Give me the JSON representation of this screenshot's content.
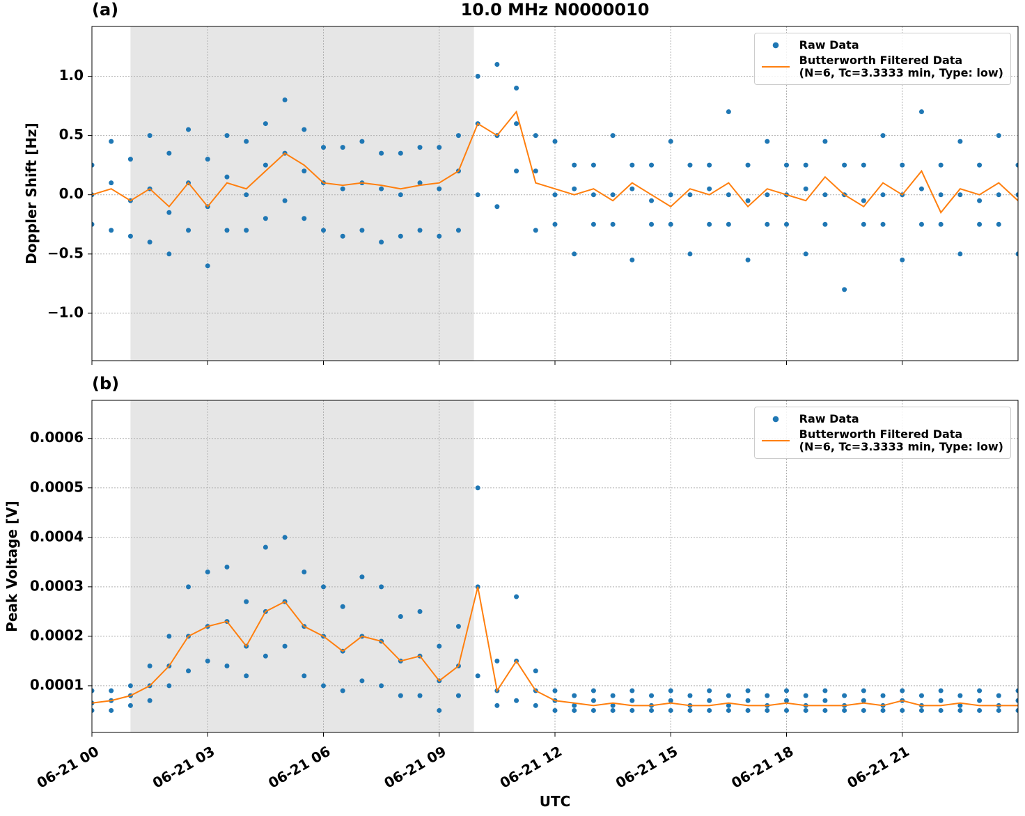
{
  "chart_data": [
    {
      "type": "line",
      "title": "10.0 MHz N0000010",
      "panel_label": "(a)",
      "ylabel": "Doppler Shift [Hz]",
      "xlim": [
        0,
        24
      ],
      "ylim": [
        -1.4,
        1.42
      ],
      "xticks": [
        {
          "value": 0,
          "label": "06-21 00"
        },
        {
          "value": 3,
          "label": "06-21 03"
        },
        {
          "value": 6,
          "label": "06-21 06"
        },
        {
          "value": 9,
          "label": "06-21 09"
        },
        {
          "value": 12,
          "label": "06-21 12"
        },
        {
          "value": 15,
          "label": "06-21 15"
        },
        {
          "value": 18,
          "label": "06-21 18"
        },
        {
          "value": 21,
          "label": "06-21 21"
        }
      ],
      "yticks": [
        {
          "value": -1,
          "label": "−1.0"
        },
        {
          "value": -0.5,
          "label": "−0.5"
        },
        {
          "value": 0,
          "label": "0.0"
        },
        0.5,
        {
          "value": 1,
          "label": "1.0"
        }
      ],
      "grid": true,
      "shade": [
        1.0,
        9.9
      ],
      "legend": "upper right",
      "x": [
        0,
        0.5,
        1,
        1.5,
        2,
        2.5,
        3,
        3.5,
        4,
        4.5,
        5,
        5.5,
        6,
        6.5,
        7,
        7.5,
        8,
        8.5,
        9,
        9.5,
        10,
        10.5,
        11,
        11.5,
        12,
        12.5,
        13,
        13.5,
        14,
        14.5,
        15,
        15.5,
        16,
        16.5,
        17,
        17.5,
        18,
        18.5,
        19,
        19.5,
        20,
        20.5,
        21,
        21.5,
        22,
        22.5,
        23,
        23.5,
        24
      ],
      "series": [
        {
          "name": "Raw Data",
          "kind": "scatter",
          "color": "#1f77b4",
          "values": [
            [
              0.25,
              0.0,
              -0.25
            ],
            [
              0.45,
              0.1,
              -0.3
            ],
            [
              0.3,
              -0.05,
              -0.35
            ],
            [
              0.5,
              0.05,
              -0.4
            ],
            [
              0.35,
              -0.15,
              -0.5
            ],
            [
              0.55,
              0.1,
              -0.3
            ],
            [
              0.3,
              -0.1,
              -0.6
            ],
            [
              0.5,
              0.15,
              -0.3
            ],
            [
              0.45,
              0.0,
              -0.3
            ],
            [
              0.6,
              0.25,
              -0.2
            ],
            [
              0.8,
              0.35,
              -0.05
            ],
            [
              0.55,
              0.2,
              -0.2
            ],
            [
              0.4,
              0.1,
              -0.3
            ],
            [
              0.4,
              0.05,
              -0.35
            ],
            [
              0.45,
              0.1,
              -0.3
            ],
            [
              0.35,
              0.05,
              -0.4
            ],
            [
              0.35,
              0.0,
              -0.35
            ],
            [
              0.4,
              0.1,
              -0.3
            ],
            [
              0.4,
              0.05,
              -0.35
            ],
            [
              0.5,
              0.2,
              -0.3
            ],
            [
              1.0,
              0.6,
              0.0
            ],
            [
              1.1,
              0.5,
              -0.1
            ],
            [
              0.9,
              0.6,
              0.2
            ],
            [
              0.5,
              0.2,
              -0.3
            ],
            [
              0.45,
              0.0,
              -0.25
            ],
            [
              0.25,
              0.05,
              -0.5
            ],
            [
              0.25,
              0.0,
              -0.25
            ],
            [
              0.5,
              0.0,
              -0.25
            ],
            [
              0.25,
              0.05,
              -0.55
            ],
            [
              0.25,
              -0.05,
              -0.25
            ],
            [
              0.45,
              0.0,
              -0.25
            ],
            [
              0.25,
              0.0,
              -0.5
            ],
            [
              0.25,
              0.05,
              -0.25
            ],
            [
              0.7,
              0.0,
              -0.25
            ],
            [
              0.25,
              -0.05,
              -0.55
            ],
            [
              0.45,
              0.0,
              -0.25
            ],
            [
              0.25,
              0.0,
              -0.25
            ],
            [
              0.25,
              0.05,
              -0.5
            ],
            [
              0.45,
              0.0,
              -0.25
            ],
            [
              0.25,
              0.0,
              -0.8
            ],
            [
              0.25,
              -0.05,
              -0.25
            ],
            [
              0.5,
              0.0,
              -0.25
            ],
            [
              0.25,
              0.0,
              -0.55
            ],
            [
              0.7,
              0.05,
              -0.25
            ],
            [
              0.25,
              0.0,
              -0.25
            ],
            [
              0.45,
              0.0,
              -0.5
            ],
            [
              0.25,
              -0.05,
              -0.25
            ],
            [
              0.5,
              0.0,
              -0.25
            ],
            [
              0.25,
              0.0,
              -0.5
            ]
          ]
        },
        {
          "name": "Butterworth Filtered Data\n(N=6, Tc=3.3333 min, Type: low)",
          "kind": "line",
          "color": "#ff7f0e",
          "values": [
            0,
            0.05,
            -0.05,
            0.05,
            -0.1,
            0.1,
            -0.1,
            0.1,
            0.05,
            0.2,
            0.35,
            0.25,
            0.1,
            0.08,
            0.1,
            0.08,
            0.05,
            0.08,
            0.1,
            0.2,
            0.6,
            0.5,
            0.7,
            0.1,
            0.05,
            0.0,
            0.05,
            -0.05,
            0.1,
            0.0,
            -0.1,
            0.05,
            0.0,
            0.1,
            -0.1,
            0.05,
            0.0,
            -0.05,
            0.15,
            0.0,
            -0.1,
            0.1,
            0.0,
            0.2,
            -0.15,
            0.05,
            0.0,
            0.1,
            -0.05
          ]
        }
      ]
    },
    {
      "type": "line",
      "panel_label": "(b)",
      "ylabel": "Peak Voltage [V]",
      "xlabel": "UTC",
      "xlim": [
        0,
        24
      ],
      "ylim": [
        5.6e-06,
        0.000677
      ],
      "xticks": [
        {
          "value": 0,
          "label": "06-21 00"
        },
        {
          "value": 3,
          "label": "06-21 03"
        },
        {
          "value": 6,
          "label": "06-21 06"
        },
        {
          "value": 9,
          "label": "06-21 09"
        },
        {
          "value": 12,
          "label": "06-21 12"
        },
        {
          "value": 15,
          "label": "06-21 15"
        },
        {
          "value": 18,
          "label": "06-21 18"
        },
        {
          "value": 21,
          "label": "06-21 21"
        }
      ],
      "yticks": [
        0.0001,
        0.0002,
        0.0003,
        0.0004,
        0.0005,
        0.0006
      ],
      "grid": true,
      "shade": [
        1.0,
        9.9
      ],
      "legend": "upper right",
      "x": [
        0,
        0.5,
        1,
        1.5,
        2,
        2.5,
        3,
        3.5,
        4,
        4.5,
        5,
        5.5,
        6,
        6.5,
        7,
        7.5,
        8,
        8.5,
        9,
        9.5,
        10,
        10.5,
        11,
        11.5,
        12,
        12.5,
        13,
        13.5,
        14,
        14.5,
        15,
        15.5,
        16,
        16.5,
        17,
        17.5,
        18,
        18.5,
        19,
        19.5,
        20,
        20.5,
        21,
        21.5,
        22,
        22.5,
        23,
        23.5,
        24
      ],
      "series": [
        {
          "name": "Raw Data",
          "kind": "scatter",
          "color": "#1f77b4",
          "values": [
            [
              9e-05,
              6.5e-05,
              5e-05
            ],
            [
              9e-05,
              7e-05,
              5e-05
            ],
            [
              0.0001,
              8e-05,
              6e-05
            ],
            [
              0.00014,
              0.0001,
              7e-05
            ],
            [
              0.0002,
              0.00014,
              0.0001
            ],
            [
              0.0003,
              0.0002,
              0.00013
            ],
            [
              0.00033,
              0.00022,
              0.00015
            ],
            [
              0.00034,
              0.00023,
              0.00014
            ],
            [
              0.00027,
              0.00018,
              0.00012
            ],
            [
              0.00038,
              0.00025,
              0.00016
            ],
            [
              0.0004,
              0.00027,
              0.00018
            ],
            [
              0.00033,
              0.00022,
              0.00012
            ],
            [
              0.0003,
              0.0002,
              0.0001
            ],
            [
              0.00026,
              0.00017,
              9e-05
            ],
            [
              0.00032,
              0.0002,
              0.00011
            ],
            [
              0.0003,
              0.00019,
              0.0001
            ],
            [
              0.00024,
              0.00015,
              8e-05
            ],
            [
              0.00025,
              0.00016,
              8e-05
            ],
            [
              0.00018,
              0.00011,
              5e-05
            ],
            [
              0.00022,
              0.00014,
              8e-05
            ],
            [
              0.0005,
              0.0003,
              0.00012
            ],
            [
              0.00015,
              9e-05,
              6e-05
            ],
            [
              0.00028,
              0.00015,
              7e-05
            ],
            [
              0.00013,
              9e-05,
              6e-05
            ],
            [
              9e-05,
              7e-05,
              5e-05
            ],
            [
              8e-05,
              6e-05,
              5e-05
            ],
            [
              9e-05,
              7e-05,
              5e-05
            ],
            [
              8e-05,
              6e-05,
              5e-05
            ],
            [
              9e-05,
              7e-05,
              5e-05
            ],
            [
              8e-05,
              6e-05,
              5e-05
            ],
            [
              9e-05,
              7e-05,
              5e-05
            ],
            [
              8e-05,
              6e-05,
              5e-05
            ],
            [
              9e-05,
              7e-05,
              5e-05
            ],
            [
              8e-05,
              6e-05,
              5e-05
            ],
            [
              9e-05,
              7e-05,
              5e-05
            ],
            [
              8e-05,
              6e-05,
              5e-05
            ],
            [
              9e-05,
              7e-05,
              5e-05
            ],
            [
              8e-05,
              6e-05,
              5e-05
            ],
            [
              9e-05,
              7e-05,
              5e-05
            ],
            [
              8e-05,
              6e-05,
              5e-05
            ],
            [
              9e-05,
              7e-05,
              5e-05
            ],
            [
              8e-05,
              6e-05,
              5e-05
            ],
            [
              9e-05,
              7e-05,
              5e-05
            ],
            [
              8e-05,
              6e-05,
              5e-05
            ],
            [
              9e-05,
              7e-05,
              5e-05
            ],
            [
              8e-05,
              6e-05,
              5e-05
            ],
            [
              9e-05,
              7e-05,
              5e-05
            ],
            [
              8e-05,
              6e-05,
              5e-05
            ],
            [
              9e-05,
              7e-05,
              5e-05
            ]
          ]
        },
        {
          "name": "Butterworth Filtered Data\n(N=6, Tc=3.3333 min, Type: low)",
          "kind": "line",
          "color": "#ff7f0e",
          "values": [
            6.5e-05,
            7e-05,
            8e-05,
            0.0001,
            0.00014,
            0.0002,
            0.00022,
            0.00023,
            0.00018,
            0.00025,
            0.00027,
            0.00022,
            0.0002,
            0.00017,
            0.0002,
            0.00019,
            0.00015,
            0.00016,
            0.00011,
            0.00014,
            0.0003,
            9e-05,
            0.00015,
            9e-05,
            7e-05,
            6.5e-05,
            6e-05,
            6.5e-05,
            6e-05,
            6e-05,
            6.5e-05,
            6e-05,
            6e-05,
            6.5e-05,
            6e-05,
            6e-05,
            6.5e-05,
            6e-05,
            6e-05,
            6e-05,
            6.5e-05,
            6e-05,
            7e-05,
            6e-05,
            6e-05,
            6.5e-05,
            6e-05,
            6e-05,
            6e-05
          ]
        }
      ]
    }
  ]
}
